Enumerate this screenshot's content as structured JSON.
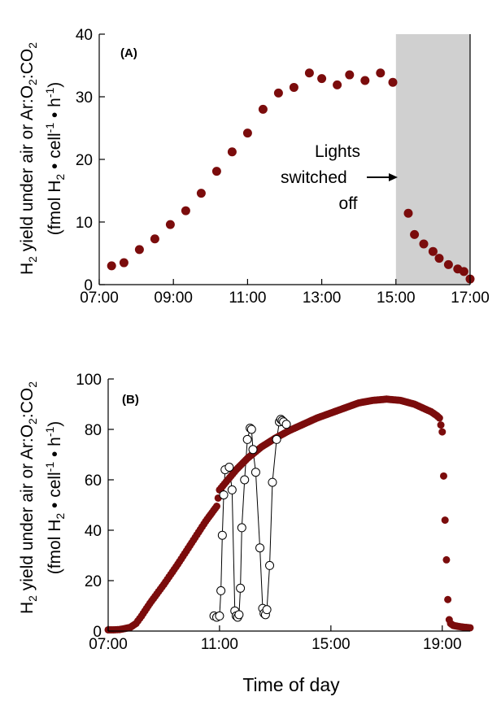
{
  "xlabel": "Time of day",
  "ylabel": {
    "line1_a": "H",
    "line1_sub": "2",
    "line1_b": " yield under air or  Ar:O",
    "line1_sub2": "2",
    "line1_c": ":CO",
    "line1_sub3": "2",
    "line2_a": "(fmol H",
    "line2_sub": "2",
    "line2_b": " • cell",
    "line2_sup": "-1",
    "line2_c": " • h",
    "line2_sup2": "-1",
    "line2_d": ")"
  },
  "chart_data": [
    {
      "type": "scatter",
      "panel_label": "(A)",
      "xlim": [
        7,
        17
      ],
      "ylim": [
        0,
        40
      ],
      "x_ticks": [
        7,
        9,
        11,
        13,
        15,
        17
      ],
      "x_tick_labels": [
        "07:00",
        "09:00",
        "11:00",
        "13:00",
        "15:00",
        "17:00"
      ],
      "y_ticks": [
        0,
        10,
        20,
        30,
        40
      ],
      "y_tick_labels": [
        "0",
        "10",
        "20",
        "30",
        "40"
      ],
      "shaded_region": [
        15,
        17
      ],
      "annotation": {
        "lines": [
          "Lights",
          "switched",
          "off"
        ],
        "arrow_to": "15:00"
      },
      "series": [
        {
          "color": "#7b0c0c",
          "x": [
            "07:20",
            "07:40",
            "08:05",
            "08:30",
            "08:55",
            "09:20",
            "09:45",
            "10:10",
            "10:35",
            "11:00",
            "11:25",
            "11:50",
            "12:15",
            "12:40",
            "13:00",
            "13:25",
            "13:45",
            "14:10",
            "14:35",
            "14:55",
            "15:20",
            "15:30",
            "15:45",
            "16:00",
            "16:10",
            "16:25",
            "16:40",
            "16:50",
            "17:00"
          ],
          "y": [
            3.0,
            3.5,
            5.6,
            7.3,
            9.6,
            11.8,
            14.6,
            18.1,
            21.2,
            24.2,
            28.0,
            30.6,
            31.5,
            33.8,
            32.9,
            31.9,
            33.5,
            32.6,
            33.8,
            32.3,
            11.4,
            8.0,
            6.5,
            5.3,
            4.2,
            3.2,
            2.5,
            2.1,
            0.9
          ]
        }
      ]
    },
    {
      "type": "scatter",
      "panel_label": "(B)",
      "xlim": [
        7,
        20
      ],
      "ylim": [
        0,
        100
      ],
      "x_ticks": [
        7,
        11,
        15,
        19
      ],
      "x_tick_labels": [
        "07:00",
        "11:00",
        "15:00",
        "19:00"
      ],
      "y_ticks": [
        0,
        20,
        40,
        60,
        80,
        100
      ],
      "y_tick_labels": [
        "0",
        "20",
        "40",
        "60",
        "80",
        "100"
      ],
      "series": [
        {
          "color": "#7b0c0c",
          "marker": "filled-circle",
          "x_points": [
            7.0,
            7.2,
            7.4,
            7.6,
            7.8,
            8.0,
            8.2,
            8.5,
            9.0,
            9.5,
            10.0,
            10.5,
            10.9,
            11.0,
            11.3,
            11.6,
            12.0,
            12.5,
            13.0,
            13.5,
            14.0,
            14.5,
            15.0,
            15.5,
            16.0,
            16.5,
            17.0,
            17.5,
            18.0,
            18.3,
            18.6,
            18.8,
            18.9,
            19.0,
            19.1,
            19.2,
            19.25,
            19.3,
            19.4,
            19.5,
            19.6,
            19.8,
            20.0
          ],
          "y": [
            0.5,
            0.5,
            0.6,
            1.0,
            1.5,
            3.0,
            6.0,
            11.0,
            18.5,
            26.5,
            35.0,
            43.5,
            49.5,
            56.0,
            60.0,
            64.0,
            68.5,
            73.0,
            76.5,
            79.5,
            82.0,
            84.5,
            86.5,
            88.5,
            90.5,
            91.5,
            92.0,
            91.5,
            90.0,
            88.5,
            87.0,
            85.5,
            84.5,
            79.0,
            44.0,
            12.5,
            4.5,
            3.0,
            2.2,
            2.0,
            1.8,
            1.5,
            1.3
          ]
        },
        {
          "color": "#ffffff",
          "marker": "open-circle-line",
          "x_points": [
            10.8,
            10.9,
            11.0,
            11.05,
            11.1,
            11.15,
            11.2,
            11.35,
            11.45,
            11.55,
            11.6,
            11.65,
            11.7,
            11.75,
            11.8,
            11.9,
            12.0,
            12.1,
            12.15,
            12.2,
            12.3,
            12.45,
            12.55,
            12.6,
            12.65,
            12.7,
            12.8,
            12.9,
            13.05,
            13.15,
            13.2,
            13.25,
            13.3,
            13.4
          ],
          "y": [
            6.0,
            5.5,
            6.0,
            16.0,
            38.0,
            54.0,
            64.0,
            65.0,
            56.0,
            8.0,
            6.0,
            5.5,
            6.5,
            17.0,
            41.0,
            60.0,
            76.0,
            80.5,
            80.0,
            72.0,
            63.0,
            33.0,
            9.0,
            7.0,
            6.5,
            8.5,
            26.0,
            59.0,
            76.0,
            83.0,
            84.0,
            83.5,
            83.0,
            82.0
          ]
        }
      ]
    }
  ]
}
